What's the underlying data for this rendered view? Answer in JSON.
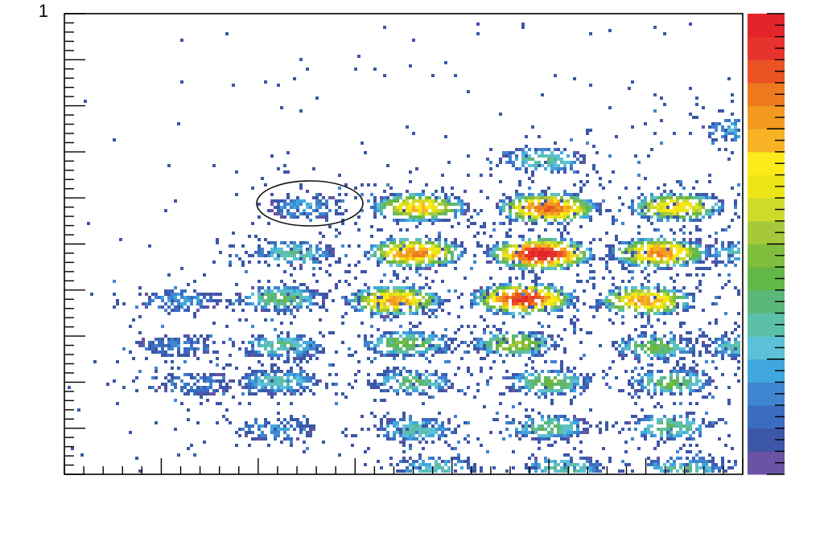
{
  "chart_data": {
    "type": "heatmap",
    "title": "",
    "xlabel": "",
    "ylabel": "",
    "xlim": [
      0,
      14
    ],
    "ylim": [
      0,
      10
    ],
    "x_tick_labels": [],
    "y_tick_labels": [
      "1",
      ""
    ],
    "colorbar": {
      "colors": [
        "#6a53a3",
        "#3d57a8",
        "#3a6cc0",
        "#3f85cf",
        "#3fa7de",
        "#5cc0d6",
        "#5cbfa8",
        "#5cb87a",
        "#63b746",
        "#80bd3c",
        "#a6c93c",
        "#cedb2b",
        "#ece616",
        "#fcea1a",
        "#f7b325",
        "#f29a1f",
        "#ee7a1f",
        "#ea5224",
        "#e7332d",
        "#e4242b"
      ],
      "tick_labels": []
    },
    "clusters": [
      {
        "x": 9.9,
        "y": 6.8,
        "intensity": 0.35
      },
      {
        "x": 14.0,
        "y": 7.5,
        "intensity": 0.25
      },
      {
        "x": 5.0,
        "y": 5.8,
        "intensity": 0.22,
        "circled": true
      },
      {
        "x": 7.3,
        "y": 5.8,
        "intensity": 0.72
      },
      {
        "x": 10.0,
        "y": 5.8,
        "intensity": 0.88
      },
      {
        "x": 12.6,
        "y": 5.8,
        "intensity": 0.7
      },
      {
        "x": 4.7,
        "y": 4.8,
        "intensity": 0.35
      },
      {
        "x": 7.2,
        "y": 4.8,
        "intensity": 0.82
      },
      {
        "x": 9.8,
        "y": 4.8,
        "intensity": 1.0
      },
      {
        "x": 12.3,
        "y": 4.8,
        "intensity": 0.82
      },
      {
        "x": 14.0,
        "y": 4.8,
        "intensity": 0.3
      },
      {
        "x": 2.4,
        "y": 3.8,
        "intensity": 0.2
      },
      {
        "x": 4.5,
        "y": 3.8,
        "intensity": 0.4
      },
      {
        "x": 6.8,
        "y": 3.8,
        "intensity": 0.78
      },
      {
        "x": 9.5,
        "y": 3.8,
        "intensity": 0.95
      },
      {
        "x": 12.0,
        "y": 3.8,
        "intensity": 0.78
      },
      {
        "x": 2.3,
        "y": 2.8,
        "intensity": 0.15
      },
      {
        "x": 4.5,
        "y": 2.8,
        "intensity": 0.35
      },
      {
        "x": 7.1,
        "y": 2.8,
        "intensity": 0.45
      },
      {
        "x": 9.3,
        "y": 2.8,
        "intensity": 0.5
      },
      {
        "x": 12.2,
        "y": 2.8,
        "intensity": 0.42
      },
      {
        "x": 14.0,
        "y": 2.8,
        "intensity": 0.3
      },
      {
        "x": 2.7,
        "y": 2.0,
        "intensity": 0.15
      },
      {
        "x": 4.4,
        "y": 2.0,
        "intensity": 0.3
      },
      {
        "x": 7.2,
        "y": 2.0,
        "intensity": 0.38
      },
      {
        "x": 10.0,
        "y": 2.0,
        "intensity": 0.45
      },
      {
        "x": 12.5,
        "y": 2.0,
        "intensity": 0.42
      },
      {
        "x": 4.4,
        "y": 1.0,
        "intensity": 0.2
      },
      {
        "x": 7.2,
        "y": 1.0,
        "intensity": 0.32
      },
      {
        "x": 10.0,
        "y": 1.0,
        "intensity": 0.38
      },
      {
        "x": 12.5,
        "y": 1.0,
        "intensity": 0.38
      },
      {
        "x": 7.7,
        "y": 0.1,
        "intensity": 0.3
      },
      {
        "x": 10.3,
        "y": 0.1,
        "intensity": 0.35
      },
      {
        "x": 12.8,
        "y": 0.1,
        "intensity": 0.32
      }
    ],
    "grid": false,
    "legend": "none"
  }
}
